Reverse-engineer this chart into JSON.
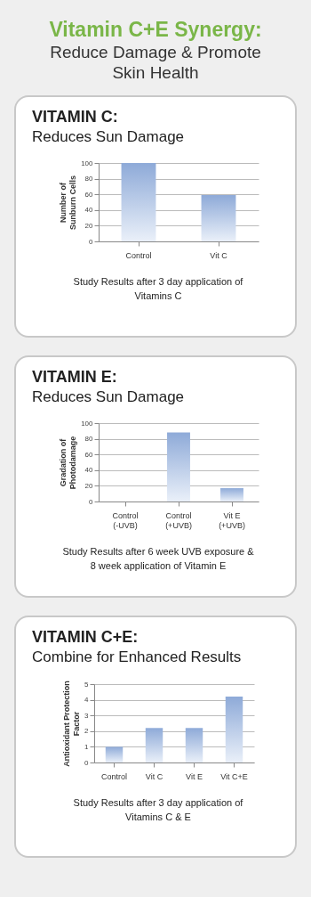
{
  "chart_data": [
    {
      "type": "other",
      "title": "Vitamin C+E Synergy:",
      "subtitle": "Reduce Damage & Promote Skin Health"
    },
    {
      "type": "bar",
      "title": "VITAMIN C:",
      "subtitle": "Reduces Sun Damage",
      "ylabel": "Number of Sunburn Cells",
      "categories": [
        "Control",
        "Vit C"
      ],
      "values": [
        100,
        59
      ],
      "color": "#8eaad8",
      "ylim": [
        0,
        100
      ],
      "yticks": [
        0,
        20,
        40,
        60,
        80,
        100
      ],
      "grid": "y",
      "annotations": [
        "Study Results after 3 day application of Vitamins C"
      ]
    },
    {
      "type": "bar",
      "title": "VITAMIN E:",
      "subtitle": "Reduces Sun Damage",
      "ylabel": "Gradation of Photodamage",
      "categories": [
        "Control (-UVB)",
        "Control (+UVB)",
        "Vit E (+UVB)"
      ],
      "values": [
        0,
        88,
        17
      ],
      "color": "#8eaad8",
      "ylim": [
        0,
        100
      ],
      "yticks": [
        0,
        20,
        40,
        60,
        80,
        100
      ],
      "grid": "y",
      "annotations": [
        "Study Results after 6 week UVB exposure & 8 week application of Vitamin E"
      ]
    },
    {
      "type": "bar",
      "title": "VITAMIN C+E:",
      "subtitle": "Combine for Enhanced Results",
      "ylabel": "Antioxidant Protection Factor",
      "categories": [
        "Control",
        "Vit C",
        "Vit E",
        "Vit C+E"
      ],
      "values": [
        1,
        2.2,
        2.2,
        4.2
      ],
      "color": "#8eaad8",
      "ylim": [
        0,
        5
      ],
      "yticks": [
        0,
        1,
        2,
        3,
        4,
        5
      ],
      "grid": "y",
      "annotations": [
        "Study Results after 3 day application of Vitamins C & E"
      ]
    }
  ]
}
